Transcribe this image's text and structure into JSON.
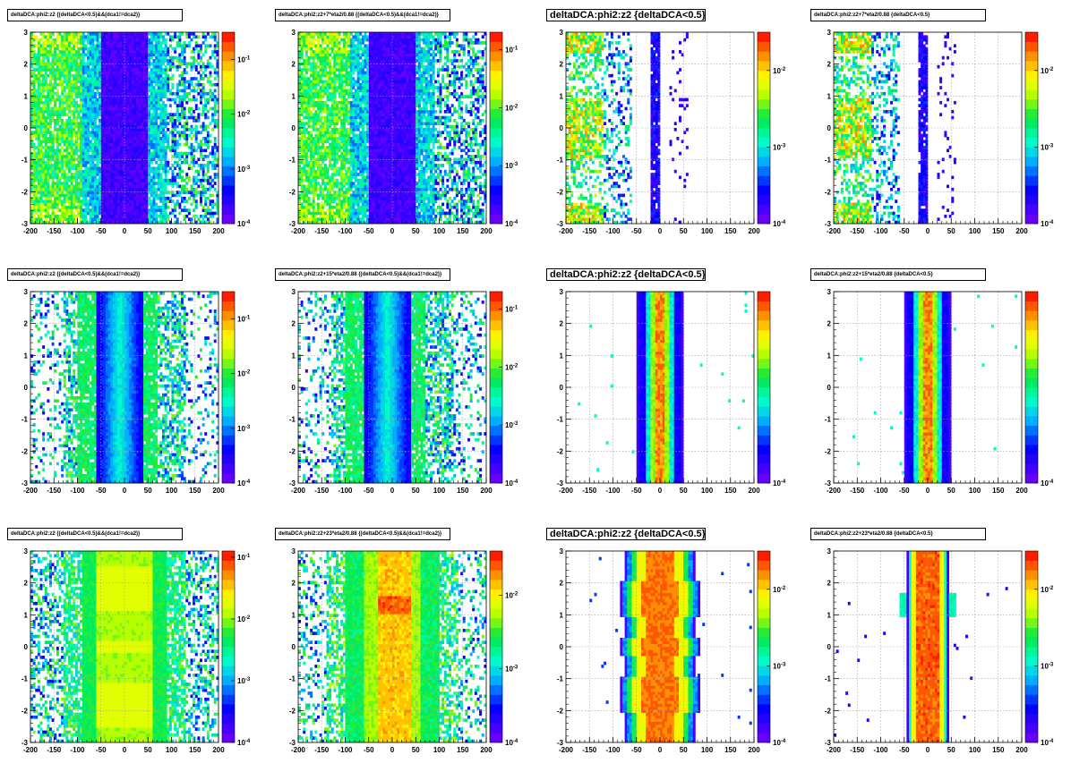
{
  "chart_data": [
    {
      "type": "heatmap",
      "title": "deltaDCA:phi2:z2 {(deltaDCA<0.5)&&(dca1!=dca2)}",
      "title_size": "small",
      "variant": "wide",
      "xlim": [
        -200,
        200
      ],
      "ylim": [
        -3,
        3
      ],
      "x_ticks": [
        -200,
        -150,
        -100,
        -50,
        0,
        50,
        100,
        150,
        200
      ],
      "y_ticks": [
        -3,
        -2,
        -1,
        0,
        1,
        2,
        3
      ],
      "color_scale": "log",
      "z_ticks": [
        "10^-1",
        "10^-2",
        "10^-3",
        "10^-4"
      ],
      "z_exp": [
        -1,
        -2,
        -3,
        -4
      ],
      "z_range": [
        -4,
        -0.5
      ],
      "grid": true
    },
    {
      "type": "heatmap",
      "title": "deltaDCA:phi2:z2+7*eta2/0.88 {(deltaDCA<0.5)&&(dca1!=dca2)}",
      "title_size": "small",
      "variant": "wide",
      "xlim": [
        -200,
        200
      ],
      "ylim": [
        -3,
        3
      ],
      "x_ticks": [
        -200,
        -150,
        -100,
        -50,
        0,
        50,
        100,
        150,
        200
      ],
      "y_ticks": [
        -3,
        -2,
        -1,
        0,
        1,
        2,
        3
      ],
      "color_scale": "log",
      "z_ticks": [
        "10^-1",
        "10^-2",
        "10^-3",
        "10^-4"
      ],
      "z_exp": [
        -1,
        -2,
        -3,
        -4
      ],
      "z_range": [
        -4,
        -0.7
      ],
      "grid": true
    },
    {
      "type": "heatmap",
      "title": "deltaDCA:phi2:z2 {deltaDCA<0.5}",
      "title_size": "large",
      "variant": "edge",
      "xlim": [
        -200,
        200
      ],
      "ylim": [
        -3,
        3
      ],
      "x_ticks": [
        -200,
        -150,
        -100,
        -50,
        0,
        50,
        100,
        150,
        200
      ],
      "y_ticks": [
        -3,
        -2,
        -1,
        0,
        1,
        2,
        3
      ],
      "color_scale": "log",
      "z_ticks": [
        "10^-2",
        "10^-3",
        "10^-4"
      ],
      "z_exp": [
        -2,
        -3,
        -4
      ],
      "z_range": [
        -4,
        -1.5
      ],
      "grid": true
    },
    {
      "type": "heatmap",
      "title": "deltaDCA:phi2:z2+7*eta2/0.88 {deltaDCA<0.5}",
      "title_size": "small",
      "variant": "edge",
      "xlim": [
        -200,
        200
      ],
      "ylim": [
        -3,
        3
      ],
      "x_ticks": [
        -200,
        -150,
        -100,
        -50,
        0,
        50,
        100,
        150,
        200
      ],
      "y_ticks": [
        -3,
        -2,
        -1,
        0,
        1,
        2,
        3
      ],
      "color_scale": "log",
      "z_ticks": [
        "10^-2",
        "10^-3",
        "10^-4"
      ],
      "z_exp": [
        -2,
        -3,
        -4
      ],
      "z_range": [
        -4,
        -1.5
      ],
      "grid": true
    },
    {
      "type": "heatmap",
      "title": "deltaDCA:phi2:z2 {(deltaDCA<0.5)&&(dca1!=dca2)}",
      "title_size": "small",
      "variant": "band",
      "xlim": [
        -200,
        200
      ],
      "ylim": [
        -3,
        3
      ],
      "x_ticks": [
        -200,
        -150,
        -100,
        -50,
        0,
        50,
        100,
        150,
        200
      ],
      "y_ticks": [
        -3,
        -2,
        -1,
        0,
        1,
        2,
        3
      ],
      "color_scale": "log",
      "z_ticks": [
        "10^-1",
        "10^-2",
        "10^-3",
        "10^-4"
      ],
      "z_exp": [
        -1,
        -2,
        -3,
        -4
      ],
      "z_range": [
        -4,
        -0.5
      ],
      "grid": true
    },
    {
      "type": "heatmap",
      "title": "deltaDCA:phi2:z2+15*eta2/0.88 {(deltaDCA<0.5)&&(dca1!=dca2)}",
      "title_size": "small",
      "variant": "band",
      "xlim": [
        -200,
        200
      ],
      "ylim": [
        -3,
        3
      ],
      "x_ticks": [
        -200,
        -150,
        -100,
        -50,
        0,
        50,
        100,
        150,
        200
      ],
      "y_ticks": [
        -3,
        -2,
        -1,
        0,
        1,
        2,
        3
      ],
      "color_scale": "log",
      "z_ticks": [
        "10^-1",
        "10^-2",
        "10^-3",
        "10^-4"
      ],
      "z_exp": [
        -1,
        -2,
        -3,
        -4
      ],
      "z_range": [
        -4,
        -0.7
      ],
      "grid": true
    },
    {
      "type": "heatmap",
      "title": "deltaDCA:phi2:z2 {deltaDCA<0.5}",
      "title_size": "large",
      "variant": "narrow",
      "xlim": [
        -200,
        200
      ],
      "ylim": [
        -3,
        3
      ],
      "x_ticks": [
        -200,
        -150,
        -100,
        -50,
        0,
        50,
        100,
        150,
        200
      ],
      "y_ticks": [
        -3,
        -2,
        -1,
        0,
        1,
        2,
        3
      ],
      "color_scale": "log",
      "z_ticks": [
        "10^-4"
      ],
      "z_exp": [
        -4
      ],
      "z_range": [
        -4,
        -1.2
      ],
      "grid": true
    },
    {
      "type": "heatmap",
      "title": "deltaDCA:phi2:z2+15*eta2/0.88 {deltaDCA<0.5}",
      "title_size": "small",
      "variant": "narrow",
      "xlim": [
        -200,
        200
      ],
      "ylim": [
        -3,
        3
      ],
      "x_ticks": [
        -200,
        -150,
        -100,
        -50,
        0,
        50,
        100,
        150,
        200
      ],
      "y_ticks": [
        -3,
        -2,
        -1,
        0,
        1,
        2,
        3
      ],
      "color_scale": "log",
      "z_ticks": [
        "10^-4"
      ],
      "z_exp": [
        -4
      ],
      "z_range": [
        -4,
        -1.2
      ],
      "grid": true
    },
    {
      "type": "heatmap",
      "title": "deltaDCA:phi2:z2 {(deltaDCA<0.5)&&(dca1!=dca2)}",
      "title_size": "small",
      "variant": "broad",
      "xlim": [
        -200,
        200
      ],
      "ylim": [
        -3,
        3
      ],
      "x_ticks": [
        -200,
        -150,
        -100,
        -50,
        0,
        50,
        100,
        150,
        200
      ],
      "y_ticks": [
        -3,
        -2,
        -1,
        0,
        1,
        2,
        3
      ],
      "color_scale": "log",
      "z_ticks": [
        "10^-1",
        "10^-2",
        "10^-3",
        "10^-4"
      ],
      "z_exp": [
        -1,
        -2,
        -3,
        -4
      ],
      "z_range": [
        -4,
        -0.9
      ],
      "grid": true
    },
    {
      "type": "heatmap",
      "title": "deltaDCA:phi2:z2+23*eta2/0.88 {(deltaDCA<0.5)&&(dca1!=dca2)}",
      "title_size": "small",
      "variant": "broadhot",
      "xlim": [
        -200,
        200
      ],
      "ylim": [
        -3,
        3
      ],
      "x_ticks": [
        -200,
        -150,
        -100,
        -50,
        0,
        50,
        100,
        150,
        200
      ],
      "y_ticks": [
        -3,
        -2,
        -1,
        0,
        1,
        2,
        3
      ],
      "color_scale": "log",
      "z_ticks": [
        "10^-2",
        "10^-3",
        "10^-4"
      ],
      "z_exp": [
        -2,
        -3,
        -4
      ],
      "z_range": [
        -4,
        -1.4
      ],
      "grid": true
    },
    {
      "type": "heatmap",
      "title": "deltaDCA:phi2:z2 {deltaDCA<0.5}",
      "title_size": "large",
      "variant": "central",
      "xlim": [
        -200,
        200
      ],
      "ylim": [
        -3,
        3
      ],
      "x_ticks": [
        -200,
        -150,
        -100,
        -50,
        0,
        50,
        100,
        150,
        200
      ],
      "y_ticks": [
        -3,
        -2,
        -1,
        0,
        1,
        2,
        3
      ],
      "color_scale": "log",
      "z_ticks": [
        "10^-2",
        "10^-3",
        "10^-4"
      ],
      "z_exp": [
        -2,
        -3,
        -4
      ],
      "z_range": [
        -4,
        -1.5
      ],
      "grid": true
    },
    {
      "type": "heatmap",
      "title": "deltaDCA:phi2:z2+23*eta2/0.88 {deltaDCA<0.5}",
      "title_size": "small",
      "variant": "centralnarrow",
      "xlim": [
        -200,
        200
      ],
      "ylim": [
        -3,
        3
      ],
      "x_ticks": [
        -200,
        -150,
        -100,
        -50,
        0,
        50,
        100,
        150,
        200
      ],
      "y_ticks": [
        -3,
        -2,
        -1,
        0,
        1,
        2,
        3
      ],
      "color_scale": "log",
      "z_ticks": [
        "10^-2",
        "10^-3",
        "10^-4"
      ],
      "z_exp": [
        -2,
        -3,
        -4
      ],
      "z_range": [
        -4,
        -1.5
      ],
      "grid": true
    }
  ]
}
